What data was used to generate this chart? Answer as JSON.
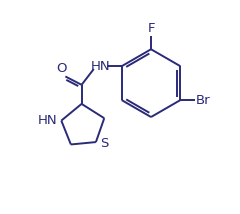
{
  "background_color": "#ffffff",
  "line_color": "#2a2a7a",
  "font_size": 9.5,
  "figsize": [
    2.4,
    2.14
  ],
  "dpi": 100,
  "xlim": [
    0,
    10
  ],
  "ylim": [
    0,
    8.9
  ]
}
